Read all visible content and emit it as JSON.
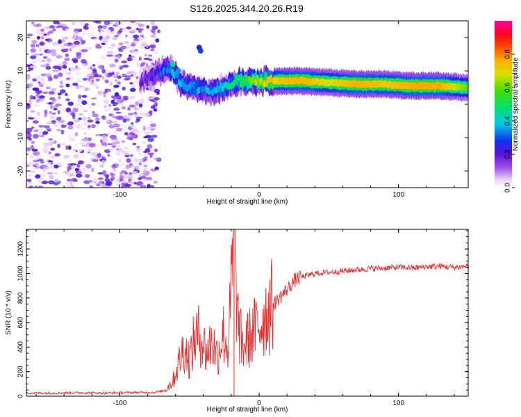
{
  "title": "S126.2025.344.20.26.R19",
  "chart_data": [
    {
      "type": "heatmap",
      "name": "spectrogram",
      "xlabel": "Height of straight line (km)",
      "ylabel": "Frequency (Hz)",
      "xlim": [
        -167,
        150
      ],
      "ylim": [
        -25,
        25
      ],
      "xticks": [
        -100,
        0,
        100
      ],
      "yticks": [
        -20,
        -10,
        0,
        10,
        20
      ],
      "colorbar": {
        "label": "Normalized spectral amplitude",
        "range": [
          0,
          1
        ],
        "ticks": [
          "0.0",
          "0.2",
          "0.4",
          "0.6",
          "0.8"
        ]
      },
      "ridge": {
        "x": [
          -85,
          -75,
          -65,
          -55,
          -45,
          -35,
          -25,
          -15,
          -5,
          5,
          15,
          30,
          50,
          70,
          90,
          110,
          130,
          150
        ],
        "frequency": [
          7,
          9,
          11,
          6,
          5,
          4,
          5,
          7,
          7,
          7,
          7,
          7,
          6.5,
          6,
          6,
          5.5,
          5.5,
          5
        ],
        "peak_amplitude": [
          0.1,
          0.2,
          0.35,
          0.4,
          0.35,
          0.35,
          0.4,
          0.55,
          0.65,
          0.75,
          0.85,
          0.9,
          0.8,
          0.9,
          0.85,
          0.9,
          0.9,
          0.7
        ]
      }
    },
    {
      "type": "line",
      "name": "snr",
      "xlabel": "Height of straight line (km)",
      "ylabel": "SNR (10 * v/v)",
      "xlim": [
        -167,
        150
      ],
      "ylim": [
        0,
        1360
      ],
      "xticks": [
        -100,
        0,
        100
      ],
      "yticks": [
        0,
        200,
        400,
        600,
        800,
        1000,
        1200
      ],
      "color": "#ee2a2a",
      "series": [
        {
          "name": "SNR",
          "x": [
            -167,
            -150,
            -130,
            -110,
            -90,
            -75,
            -68,
            -62,
            -58,
            -54,
            -50,
            -46,
            -42,
            -38,
            -34,
            -30,
            -26,
            -22,
            -18,
            -15,
            -12,
            -8,
            -4,
            0,
            4,
            8,
            12,
            16,
            20,
            25,
            30,
            40,
            50,
            60,
            70,
            80,
            90,
            100,
            110,
            120,
            130,
            140,
            150
          ],
          "y": [
            25,
            25,
            28,
            25,
            30,
            30,
            45,
            120,
            260,
            400,
            300,
            480,
            500,
            350,
            450,
            330,
            520,
            380,
            1360,
            560,
            400,
            460,
            520,
            580,
            650,
            720,
            770,
            820,
            870,
            940,
            970,
            1000,
            1010,
            1020,
            1030,
            1040,
            1045,
            1050,
            1045,
            1055,
            1060,
            1050,
            1060
          ]
        }
      ]
    }
  ]
}
